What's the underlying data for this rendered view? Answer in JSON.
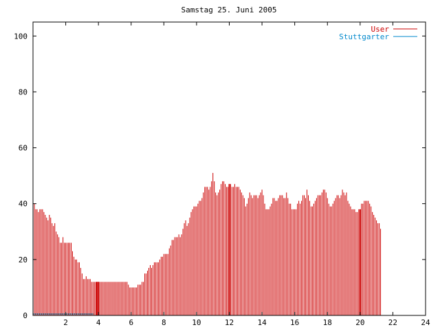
{
  "chart_data": {
    "type": "bar",
    "title": "Samstag 25. Juni 2005",
    "xlabel": "",
    "ylabel": "",
    "xlim": [
      0,
      24
    ],
    "ylim": [
      0,
      105
    ],
    "xticks": [
      2,
      4,
      6,
      8,
      10,
      12,
      14,
      16,
      18,
      20,
      22,
      24
    ],
    "yticks": [
      0,
      20,
      40,
      60,
      80,
      100
    ],
    "grid": false,
    "legend_position": "top-right",
    "colors": {
      "user": "#cc0000",
      "stuttgarter": "#0088cc",
      "axis": "#000000"
    },
    "series": [
      {
        "name": "User",
        "start_hour": 0,
        "step_hours": 0.08333333,
        "values": [
          42,
          40,
          38,
          38,
          37,
          38,
          38,
          38,
          37,
          36,
          35,
          34,
          36,
          35,
          33,
          32,
          33,
          30,
          29,
          28,
          26,
          26,
          28,
          26,
          26,
          26,
          26,
          26,
          26,
          23,
          21,
          20,
          20,
          19,
          19,
          17,
          15,
          13,
          13,
          14,
          13,
          13,
          13,
          12,
          12,
          12,
          12,
          12,
          12,
          12,
          12,
          12,
          12,
          12,
          12,
          12,
          12,
          12,
          12,
          12,
          12,
          12,
          12,
          12,
          12,
          12,
          12,
          12,
          12,
          12,
          11,
          10,
          10,
          10,
          10,
          10,
          10,
          11,
          11,
          11,
          12,
          12,
          15,
          15,
          16,
          17,
          18,
          17,
          18,
          19,
          19,
          19,
          19,
          20,
          21,
          21,
          22,
          22,
          22,
          22,
          24,
          25,
          27,
          27,
          28,
          28,
          28,
          29,
          28,
          29,
          31,
          33,
          34,
          32,
          33,
          35,
          37,
          38,
          39,
          39,
          39,
          40,
          41,
          41,
          42,
          44,
          46,
          46,
          46,
          45,
          46,
          48,
          51,
          48,
          44,
          43,
          44,
          45,
          47,
          48,
          48,
          47,
          46,
          46,
          47,
          47,
          46,
          46,
          47,
          46,
          46,
          46,
          45,
          44,
          43,
          42,
          39,
          40,
          42,
          44,
          43,
          42,
          43,
          43,
          43,
          42,
          43,
          44,
          45,
          43,
          40,
          38,
          38,
          38,
          39,
          40,
          42,
          42,
          41,
          41,
          42,
          43,
          43,
          43,
          42,
          42,
          44,
          42,
          40,
          40,
          38,
          38,
          38,
          38,
          40,
          41,
          40,
          41,
          43,
          43,
          42,
          45,
          43,
          41,
          39,
          39,
          40,
          41,
          42,
          43,
          43,
          43,
          44,
          45,
          45,
          44,
          42,
          40,
          39,
          39,
          40,
          41,
          42,
          43,
          43,
          42,
          43,
          45,
          44,
          43,
          44,
          41,
          40,
          39,
          38,
          38,
          38,
          37,
          37,
          38,
          38,
          40,
          40,
          41,
          41,
          41,
          41,
          40,
          39,
          37,
          36,
          35,
          34,
          33,
          33,
          31
        ],
        "highlight_hours": [
          3.9,
          4.0,
          12.0,
          20.0
        ]
      },
      {
        "name": "Stuttgarter",
        "segment_hours": [
          0,
          3.7
        ],
        "value": 1
      }
    ]
  }
}
